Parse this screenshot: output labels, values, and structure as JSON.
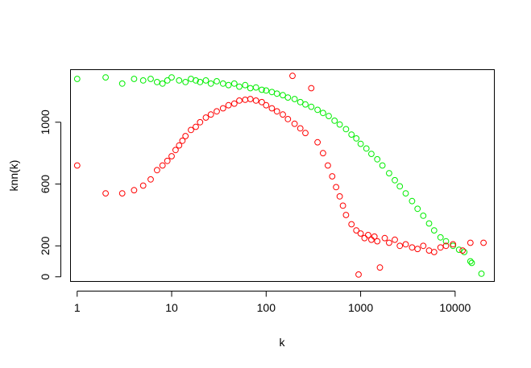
{
  "chart_data": {
    "type": "scatter",
    "title": "",
    "xlabel": "k",
    "ylabel": "knn(k)",
    "xscale": "log",
    "xlim": [
      0.85,
      26000
    ],
    "ylim": [
      -30,
      1340
    ],
    "xticks": [
      {
        "value": 1,
        "label": "1"
      },
      {
        "value": 10,
        "label": "10"
      },
      {
        "value": 100,
        "label": "100"
      },
      {
        "value": 1000,
        "label": "1000"
      },
      {
        "value": 10000,
        "label": "10000"
      }
    ],
    "yticks": [
      {
        "value": 0,
        "label": "0"
      },
      {
        "value": 200,
        "label": "200"
      },
      {
        "value": 600,
        "label": "600"
      },
      {
        "value": 1000,
        "label": "1000"
      }
    ],
    "grid": false,
    "legend": "none",
    "marker": "open-circle",
    "series": [
      {
        "color": "#00ee00",
        "points": [
          [
            1,
            1280
          ],
          [
            2,
            1290
          ],
          [
            3,
            1250
          ],
          [
            4,
            1280
          ],
          [
            5,
            1270
          ],
          [
            6,
            1280
          ],
          [
            7,
            1260
          ],
          [
            8,
            1250
          ],
          [
            9,
            1270
          ],
          [
            10,
            1290
          ],
          [
            12,
            1270
          ],
          [
            14,
            1260
          ],
          [
            16,
            1280
          ],
          [
            18,
            1270
          ],
          [
            20,
            1260
          ],
          [
            23,
            1270
          ],
          [
            26,
            1250
          ],
          [
            30,
            1265
          ],
          [
            35,
            1250
          ],
          [
            40,
            1240
          ],
          [
            46,
            1250
          ],
          [
            52,
            1230
          ],
          [
            60,
            1240
          ],
          [
            68,
            1220
          ],
          [
            78,
            1225
          ],
          [
            90,
            1210
          ],
          [
            100,
            1205
          ],
          [
            115,
            1195
          ],
          [
            130,
            1185
          ],
          [
            150,
            1175
          ],
          [
            170,
            1160
          ],
          [
            200,
            1150
          ],
          [
            230,
            1130
          ],
          [
            260,
            1115
          ],
          [
            300,
            1100
          ],
          [
            350,
            1080
          ],
          [
            400,
            1060
          ],
          [
            460,
            1040
          ],
          [
            530,
            1010
          ],
          [
            600,
            985
          ],
          [
            700,
            955
          ],
          [
            800,
            920
          ],
          [
            900,
            895
          ],
          [
            1000,
            860
          ],
          [
            1150,
            830
          ],
          [
            1300,
            795
          ],
          [
            1500,
            760
          ],
          [
            1700,
            720
          ],
          [
            2000,
            670
          ],
          [
            2300,
            625
          ],
          [
            2600,
            585
          ],
          [
            3000,
            540
          ],
          [
            3500,
            490
          ],
          [
            4000,
            440
          ],
          [
            4600,
            395
          ],
          [
            5300,
            345
          ],
          [
            6000,
            300
          ],
          [
            7000,
            255
          ],
          [
            8000,
            230
          ],
          [
            9500,
            200
          ],
          [
            11000,
            175
          ],
          [
            12500,
            160
          ],
          [
            14500,
            100
          ],
          [
            15000,
            90
          ],
          [
            19000,
            20
          ]
        ]
      },
      {
        "color": "#ff0000",
        "points": [
          [
            1,
            720
          ],
          [
            2,
            540
          ],
          [
            3,
            540
          ],
          [
            4,
            560
          ],
          [
            5,
            590
          ],
          [
            6,
            630
          ],
          [
            7,
            690
          ],
          [
            8,
            720
          ],
          [
            9,
            750
          ],
          [
            10,
            780
          ],
          [
            11,
            820
          ],
          [
            12,
            850
          ],
          [
            13,
            880
          ],
          [
            14,
            910
          ],
          [
            16,
            950
          ],
          [
            18,
            970
          ],
          [
            20,
            1000
          ],
          [
            23,
            1030
          ],
          [
            26,
            1050
          ],
          [
            30,
            1070
          ],
          [
            35,
            1090
          ],
          [
            40,
            1110
          ],
          [
            46,
            1120
          ],
          [
            52,
            1140
          ],
          [
            60,
            1145
          ],
          [
            68,
            1150
          ],
          [
            78,
            1140
          ],
          [
            90,
            1130
          ],
          [
            100,
            1110
          ],
          [
            115,
            1090
          ],
          [
            130,
            1070
          ],
          [
            150,
            1050
          ],
          [
            170,
            1020
          ],
          [
            190,
            1300
          ],
          [
            200,
            990
          ],
          [
            230,
            960
          ],
          [
            260,
            930
          ],
          [
            300,
            1220
          ],
          [
            350,
            870
          ],
          [
            400,
            800
          ],
          [
            450,
            720
          ],
          [
            500,
            650
          ],
          [
            550,
            580
          ],
          [
            600,
            520
          ],
          [
            650,
            460
          ],
          [
            700,
            400
          ],
          [
            800,
            340
          ],
          [
            900,
            300
          ],
          [
            950,
            15
          ],
          [
            1000,
            280
          ],
          [
            1100,
            250
          ],
          [
            1200,
            270
          ],
          [
            1300,
            240
          ],
          [
            1400,
            260
          ],
          [
            1500,
            230
          ],
          [
            1600,
            60
          ],
          [
            1800,
            250
          ],
          [
            2000,
            220
          ],
          [
            2300,
            240
          ],
          [
            2600,
            200
          ],
          [
            3000,
            210
          ],
          [
            3500,
            190
          ],
          [
            4000,
            180
          ],
          [
            4600,
            200
          ],
          [
            5300,
            170
          ],
          [
            6000,
            160
          ],
          [
            7000,
            190
          ],
          [
            8000,
            200
          ],
          [
            9500,
            210
          ],
          [
            12000,
            170
          ],
          [
            14500,
            220
          ],
          [
            20000,
            220
          ]
        ]
      }
    ]
  }
}
